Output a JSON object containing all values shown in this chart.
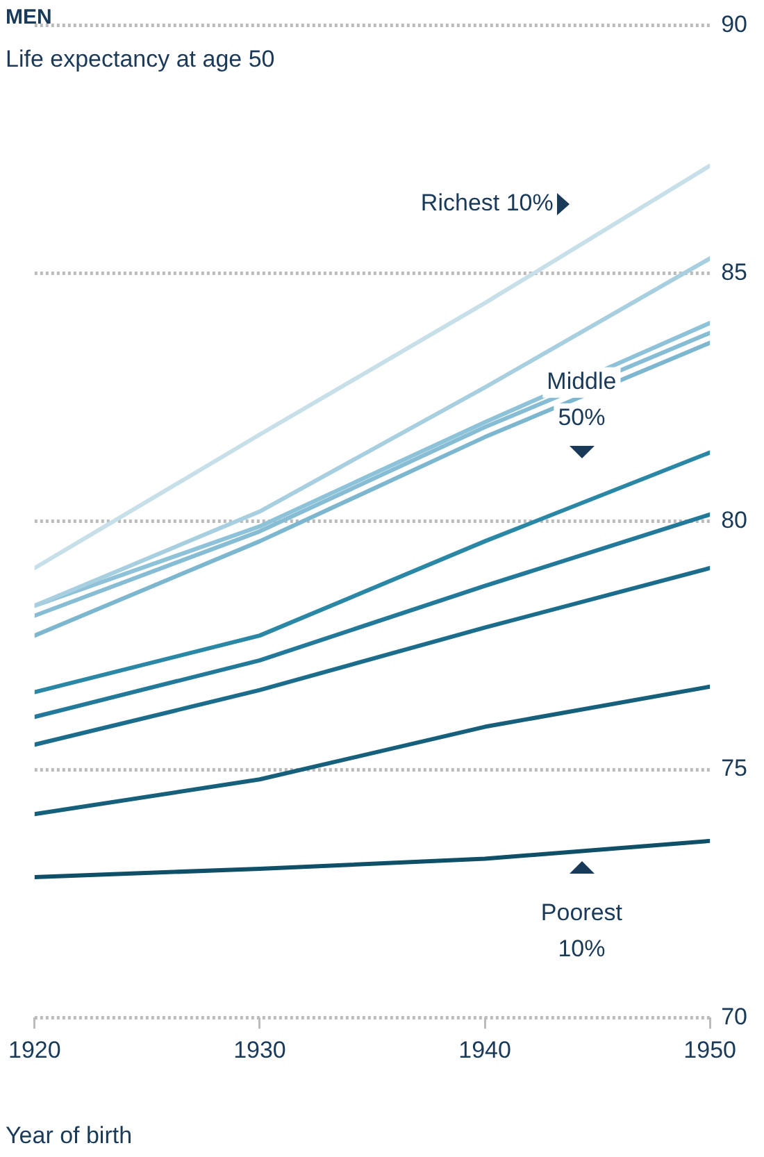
{
  "chart_data": {
    "type": "line",
    "title": "MEN",
    "subtitle": "Life expectancy at age 50",
    "xlabel": "Year of birth",
    "x": [
      1920,
      1930,
      1940,
      1950
    ],
    "series": [
      {
        "color": "#c6dfe9",
        "values": [
          79.06,
          81.75,
          84.4,
          87.17
        ]
      },
      {
        "color": "#a8cfe0",
        "values": [
          78.3,
          80.2,
          82.7,
          85.3
        ]
      },
      {
        "color": "#8ec2d8",
        "values": [
          78.3,
          79.9,
          82.0,
          84.0
        ]
      },
      {
        "color": "#86bdd4",
        "values": [
          78.1,
          79.8,
          81.9,
          83.8
        ]
      },
      {
        "color": "#7db7cf",
        "values": [
          77.7,
          79.6,
          81.7,
          83.6
        ]
      },
      {
        "color": "#2b87a6",
        "values": [
          76.56,
          77.7,
          79.6,
          81.39
        ]
      },
      {
        "color": "#23799a",
        "values": [
          76.06,
          77.2,
          78.7,
          80.14
        ]
      },
      {
        "color": "#1c6d8c",
        "values": [
          75.5,
          76.6,
          77.86,
          79.06
        ]
      },
      {
        "color": "#17607c",
        "values": [
          74.1,
          74.8,
          75.86,
          76.67
        ]
      },
      {
        "color": "#0f4f68",
        "values": [
          72.83,
          73.0,
          73.2,
          73.56
        ]
      }
    ],
    "xlim": [
      1920,
      1950
    ],
    "xticks": [
      1920,
      1930,
      1940,
      1950
    ],
    "ylim": [
      70,
      90
    ],
    "yticks": [
      70,
      75,
      80,
      85,
      90
    ],
    "grid": "y",
    "legend": false,
    "marker": "none",
    "line_style": "solid",
    "annotations": [
      "Richest 10%",
      "Middle 50%",
      "Poorest 10%"
    ]
  }
}
